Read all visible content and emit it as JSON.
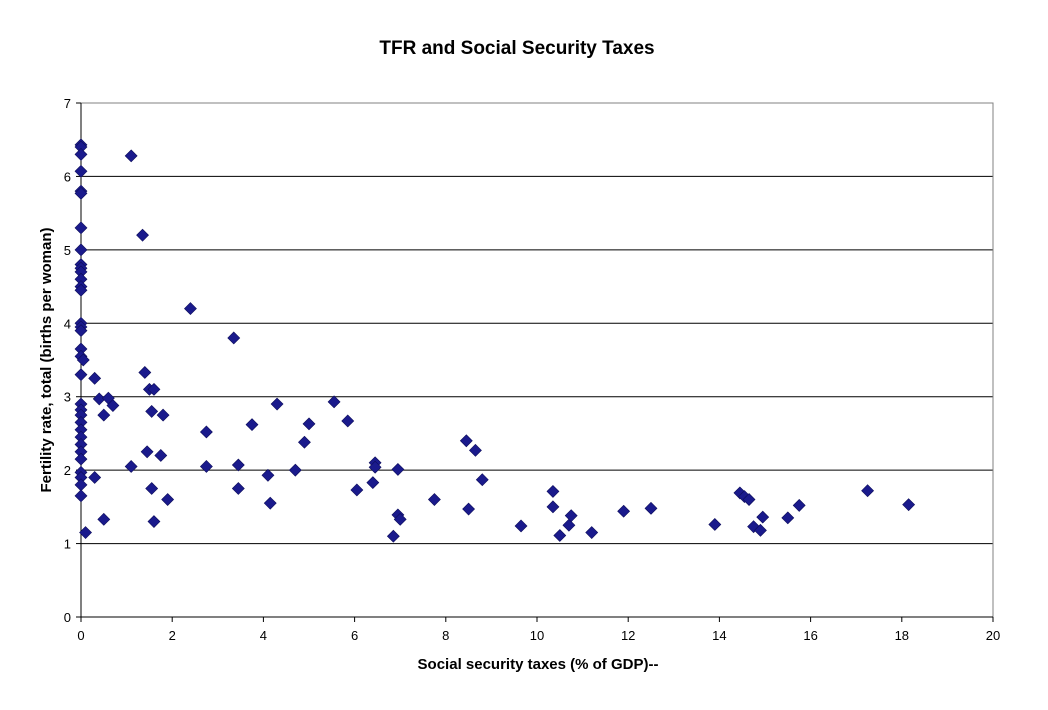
{
  "chart_data": {
    "type": "scatter",
    "title": "TFR and Social Security Taxes",
    "xlabel": "Social security taxes (% of GDP)--",
    "ylabel": "Fertility rate, total (births per woman)",
    "xlim": [
      0,
      20
    ],
    "ylim": [
      0,
      7
    ],
    "xticks": [
      0,
      2,
      4,
      6,
      8,
      10,
      12,
      14,
      16,
      18,
      20
    ],
    "yticks": [
      0,
      1,
      2,
      3,
      4,
      5,
      6,
      7
    ],
    "grid": "horizontal",
    "marker": "diamond",
    "marker_color": "#1a1a8c",
    "series": [
      {
        "name": "countries",
        "points": [
          [
            0,
            6.43
          ],
          [
            0,
            6.4
          ],
          [
            0,
            6.3
          ],
          [
            0,
            6.07
          ],
          [
            0,
            5.8
          ],
          [
            0,
            5.77
          ],
          [
            0,
            5.3
          ],
          [
            0,
            5.0
          ],
          [
            0,
            4.8
          ],
          [
            0,
            4.75
          ],
          [
            0,
            4.7
          ],
          [
            0,
            4.6
          ],
          [
            0,
            4.5
          ],
          [
            0,
            4.45
          ],
          [
            0,
            4.0
          ],
          [
            0,
            3.95
          ],
          [
            0,
            3.9
          ],
          [
            0,
            3.65
          ],
          [
            0,
            3.55
          ],
          [
            0.05,
            3.5
          ],
          [
            0,
            3.3
          ],
          [
            0,
            2.9
          ],
          [
            0,
            2.82
          ],
          [
            0,
            2.75
          ],
          [
            0,
            2.65
          ],
          [
            0,
            2.55
          ],
          [
            0,
            2.45
          ],
          [
            0,
            2.35
          ],
          [
            0,
            2.25
          ],
          [
            0,
            2.15
          ],
          [
            0,
            1.97
          ],
          [
            0,
            1.9
          ],
          [
            0,
            1.8
          ],
          [
            0,
            1.65
          ],
          [
            0.1,
            1.15
          ],
          [
            0.3,
            3.25
          ],
          [
            0.3,
            1.9
          ],
          [
            0.4,
            2.97
          ],
          [
            0.5,
            2.75
          ],
          [
            0.5,
            1.33
          ],
          [
            0.6,
            2.98
          ],
          [
            0.7,
            2.88
          ],
          [
            1.1,
            6.28
          ],
          [
            1.1,
            2.05
          ],
          [
            1.35,
            5.2
          ],
          [
            1.4,
            3.33
          ],
          [
            1.45,
            2.25
          ],
          [
            1.5,
            3.1
          ],
          [
            1.6,
            3.1
          ],
          [
            1.55,
            2.8
          ],
          [
            1.55,
            1.75
          ],
          [
            1.6,
            1.3
          ],
          [
            1.75,
            2.2
          ],
          [
            1.8,
            2.75
          ],
          [
            1.9,
            1.6
          ],
          [
            2.4,
            4.2
          ],
          [
            2.75,
            2.52
          ],
          [
            2.75,
            2.05
          ],
          [
            3.35,
            3.8
          ],
          [
            3.45,
            2.07
          ],
          [
            3.45,
            1.75
          ],
          [
            3.75,
            2.62
          ],
          [
            4.1,
            1.93
          ],
          [
            4.15,
            1.55
          ],
          [
            4.3,
            2.9
          ],
          [
            4.7,
            2.0
          ],
          [
            4.9,
            2.38
          ],
          [
            5.0,
            2.63
          ],
          [
            5.55,
            2.93
          ],
          [
            5.85,
            2.67
          ],
          [
            6.05,
            1.73
          ],
          [
            6.4,
            1.83
          ],
          [
            6.45,
            2.1
          ],
          [
            6.45,
            2.04
          ],
          [
            6.85,
            1.1
          ],
          [
            6.95,
            2.01
          ],
          [
            6.95,
            1.39
          ],
          [
            7.0,
            1.33
          ],
          [
            7.75,
            1.6
          ],
          [
            8.45,
            2.4
          ],
          [
            8.5,
            1.47
          ],
          [
            8.65,
            2.27
          ],
          [
            8.8,
            1.87
          ],
          [
            9.65,
            1.24
          ],
          [
            10.35,
            1.71
          ],
          [
            10.35,
            1.5
          ],
          [
            10.5,
            1.11
          ],
          [
            10.7,
            1.25
          ],
          [
            10.75,
            1.38
          ],
          [
            11.2,
            1.15
          ],
          [
            11.9,
            1.44
          ],
          [
            12.5,
            1.48
          ],
          [
            13.9,
            1.26
          ],
          [
            14.45,
            1.69
          ],
          [
            14.55,
            1.64
          ],
          [
            14.65,
            1.6
          ],
          [
            14.75,
            1.23
          ],
          [
            14.9,
            1.18
          ],
          [
            14.95,
            1.36
          ],
          [
            15.5,
            1.35
          ],
          [
            15.75,
            1.52
          ],
          [
            17.25,
            1.72
          ],
          [
            18.15,
            1.53
          ]
        ]
      }
    ]
  }
}
